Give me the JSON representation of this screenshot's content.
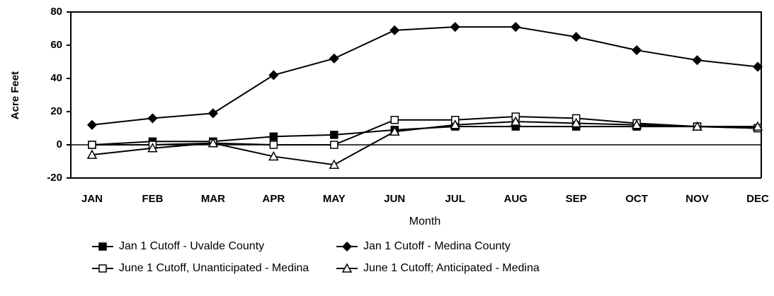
{
  "chart_data": {
    "type": "line",
    "x_label": "Month",
    "y_label": "Acre Feet",
    "categories": [
      "JAN",
      "FEB",
      "MAR",
      "APR",
      "MAY",
      "JUN",
      "JUL",
      "AUG",
      "SEP",
      "OCT",
      "NOV",
      "DEC"
    ],
    "series": [
      {
        "name": "Jan 1 Cutoff - Uvalde County",
        "color": "#000000",
        "marker": "square",
        "values": [
          0,
          2,
          2,
          5,
          6,
          9,
          11,
          11,
          11,
          11,
          11,
          10
        ]
      },
      {
        "name": "Jan 1 Cutoff - Medina County",
        "color": "#000000",
        "marker": "diamond",
        "values": [
          12,
          16,
          19,
          42,
          52,
          69,
          71,
          71,
          65,
          57,
          51,
          47
        ]
      },
      {
        "name": "June 1 Cutoff, Unanticipated - Medina",
        "color": "#000000",
        "marker": "open-square",
        "values": [
          0,
          0,
          1,
          0,
          0,
          15,
          15,
          17,
          16,
          13,
          11,
          10
        ]
      },
      {
        "name": "June 1 Cutoff; Anticipated - Medina",
        "color": "#000000",
        "marker": "open-triangle",
        "values": [
          -6,
          -2,
          1,
          -7,
          -12,
          8,
          12,
          14,
          13,
          12,
          11,
          11
        ]
      }
    ],
    "ylim": [
      -20,
      80
    ],
    "yticks": [
      -20,
      0,
      20,
      40,
      60,
      80
    ],
    "grid": false
  }
}
